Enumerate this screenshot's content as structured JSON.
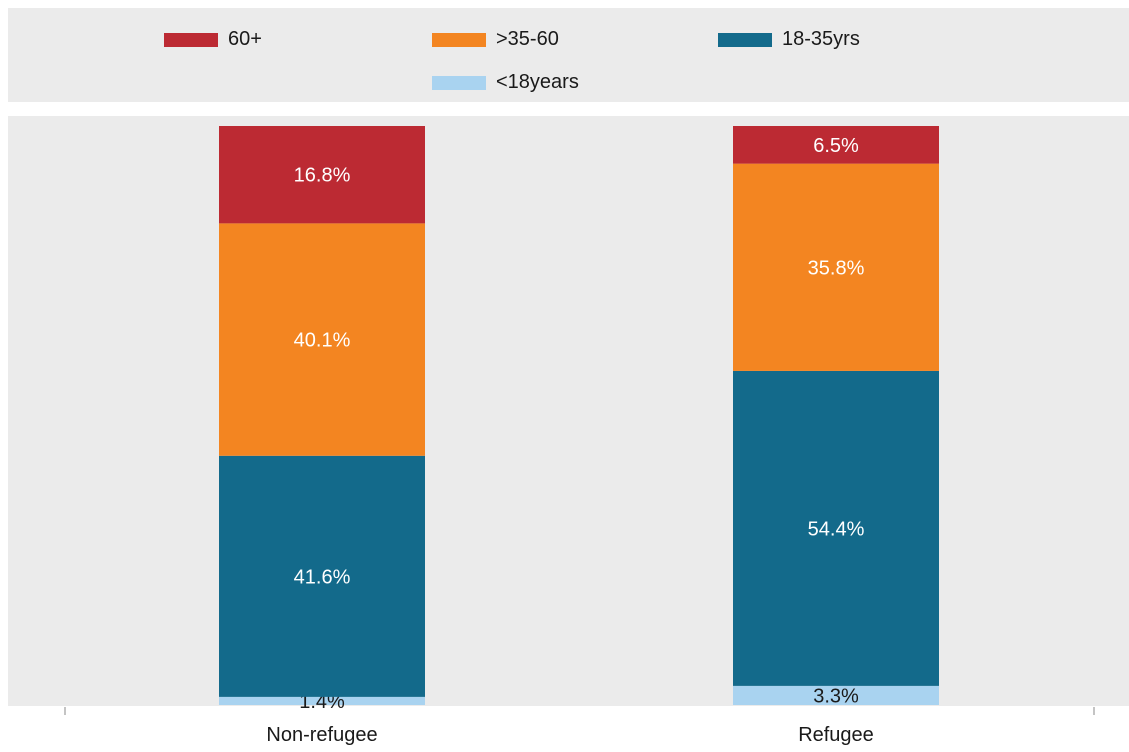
{
  "chart_data": {
    "type": "bar",
    "stacked": true,
    "normalized_percent": true,
    "categories": [
      "Non-refugee",
      "Refugee"
    ],
    "series": [
      {
        "name": "<18years",
        "values": [
          1.4,
          3.3
        ],
        "color": "#a9d3f0",
        "label_color": "#1a1a1a"
      },
      {
        "name": "18-35yrs",
        "values": [
          41.6,
          54.4
        ],
        "color": "#136a8b",
        "label_color": "#ffffff"
      },
      {
        "name": ">35-60",
        "values": [
          40.1,
          35.8
        ],
        "color": "#f38521",
        "label_color": "#ffffff"
      },
      {
        "name": "60+",
        "values": [
          16.8,
          6.5
        ],
        "color": "#bc2a33",
        "label_color": "#ffffff"
      }
    ],
    "data_labels": [
      [
        "1.4%",
        "41.6%",
        "40.1%",
        "16.8%"
      ],
      [
        "3.3%",
        "54.4%",
        "35.8%",
        "6.5%"
      ]
    ],
    "legend": {
      "position": "top",
      "entries": [
        {
          "name": "60+",
          "color": "#bc2a33"
        },
        {
          "name": ">35-60",
          "color": "#f38521"
        },
        {
          "name": "18-35yrs",
          "color": "#136a8b"
        },
        {
          "name": "<18years",
          "color": "#a9d3f0"
        }
      ]
    },
    "title": "",
    "xlabel": "",
    "ylabel": "",
    "ylim": [
      0,
      100
    ],
    "grid": false,
    "y_axis_visible": false
  },
  "colors": {
    "panel_background": "#ebebeb",
    "page_background": "#ffffff",
    "tick_text": "#1a1a1a"
  }
}
